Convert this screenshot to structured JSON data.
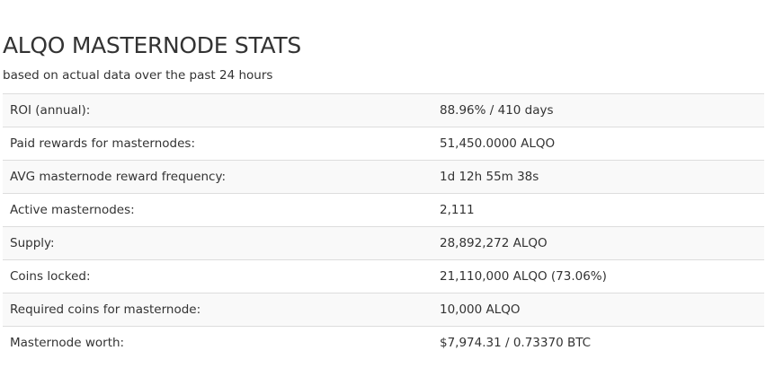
{
  "header": {
    "title": "ALQO MASTERNODE STATS",
    "subtitle": "based on actual data over the past 24 hours"
  },
  "stats": [
    {
      "label": "ROI (annual):",
      "value": "88.96% / 410 days"
    },
    {
      "label": "Paid rewards for masternodes:",
      "value": "51,450.0000 ALQO"
    },
    {
      "label": "AVG masternode reward frequency:",
      "value": "1d 12h 55m 38s"
    },
    {
      "label": "Active masternodes:",
      "value": "2,111"
    },
    {
      "label": "Supply:",
      "value": "28,892,272 ALQO"
    },
    {
      "label": "Coins locked:",
      "value": "21,110,000 ALQO (73.06%)"
    },
    {
      "label": "Required coins for masternode:",
      "value": "10,000 ALQO"
    },
    {
      "label": "Masternode worth:",
      "value": "$7,974.31 / 0.73370 BTC"
    }
  ]
}
